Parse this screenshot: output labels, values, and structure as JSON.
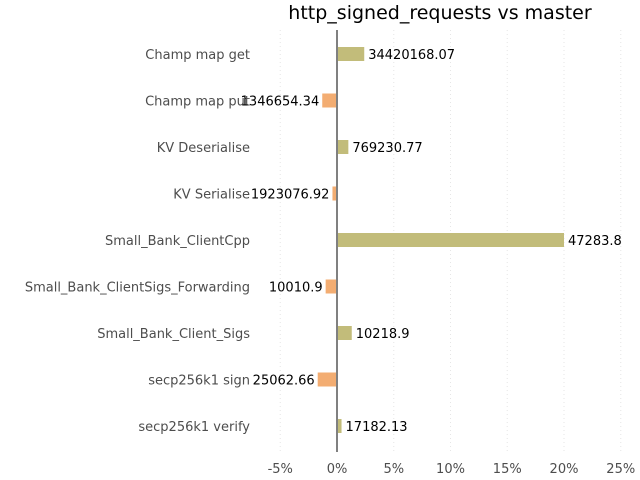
{
  "chart_data": {
    "type": "bar",
    "orientation": "horizontal",
    "title": "http_signed_requests vs master",
    "categories": [
      "Champ map get",
      "Champ map put",
      "KV Deserialise",
      "KV Serialise",
      "Small_Bank_ClientCpp",
      "Small_Bank_ClientSigs_Forwarding",
      "Small_Bank_Client_Sigs",
      "secp256k1 sign",
      "secp256k1 verify"
    ],
    "values_percent": [
      2.4,
      -1.3,
      1.0,
      -0.4,
      20.0,
      -1.0,
      1.3,
      -1.7,
      0.4
    ],
    "value_labels": [
      "34420168.07",
      "1346654.34",
      "769230.77",
      "1923076.92",
      "47283.8",
      "10010.9",
      "10218.9",
      "25062.66",
      "17182.13"
    ],
    "xticks": [
      "-5%",
      "0%",
      "5%",
      "10%",
      "15%",
      "20%",
      "25%"
    ],
    "xlim": [
      -5,
      25
    ],
    "x_unit": "percent",
    "grid": "vertical dotted",
    "colors": {
      "positive": "#c2bc7a",
      "negative": "#f3ad72",
      "zero_line": "#808080",
      "grid": "#e6e6e6"
    }
  }
}
